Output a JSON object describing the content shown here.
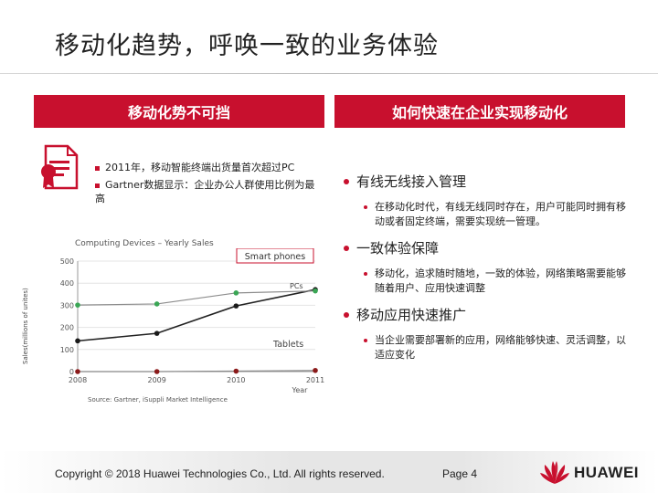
{
  "page_title": "移动化趋势，呼唤一致的业务体验",
  "left_panel": {
    "banner": "移动化势不可挡",
    "bullets": [
      "2011年，移动智能终端出货量首次超过PC",
      "Gartner数据显示：企业办公人群使用比例为最高"
    ]
  },
  "right_panel": {
    "banner": "如何快速在企业实现移动化",
    "sections": [
      {
        "heading": "有线无线接入管理",
        "detail": "在移动化时代，有线无线同时存在，用户可能同时拥有移动或者固定终端，需要实现统一管理。"
      },
      {
        "heading": "一致体验保障",
        "detail": "移动化，追求随时随地，一致的体验，网络策略需要能够随着用户、应用快速调整"
      },
      {
        "heading": "移动应用快速推广",
        "detail": "当企业需要部署新的应用，网络能够快速、灵活调整，以适应变化"
      }
    ]
  },
  "chart_data": {
    "type": "line",
    "title": "Computing Devices – Yearly Sales",
    "xlabel": "Year",
    "ylabel": "Sales(millions of unites)",
    "x": [
      2008,
      2009,
      2010,
      2011
    ],
    "xticks": [
      "2008",
      "2009",
      "2010",
      "2011"
    ],
    "yticks": [
      "0",
      "100",
      "200",
      "300",
      "400",
      "500"
    ],
    "ylim": [
      0,
      500
    ],
    "series": [
      {
        "name": "Smart phones",
        "color": "#222222",
        "marker_color": "#1a1a1a",
        "values": [
          139,
          173,
          297,
          371
        ]
      },
      {
        "name": "PCs",
        "color": "#8c8c8c",
        "marker_color": "#3aa655",
        "values": [
          301,
          306,
          356,
          365
        ]
      },
      {
        "name": "Tablets",
        "color": "#888888",
        "marker_color": "#8b1a1a",
        "values": [
          0,
          0,
          2,
          5
        ]
      }
    ],
    "source": "Source: Gartner, iSuppli Market Intelligence"
  },
  "footer": {
    "copyright": "Copyright © 2018 Huawei Technologies Co., Ltd. All rights reserved.",
    "page": "Page 4",
    "logo_text": "HUAWEI"
  }
}
